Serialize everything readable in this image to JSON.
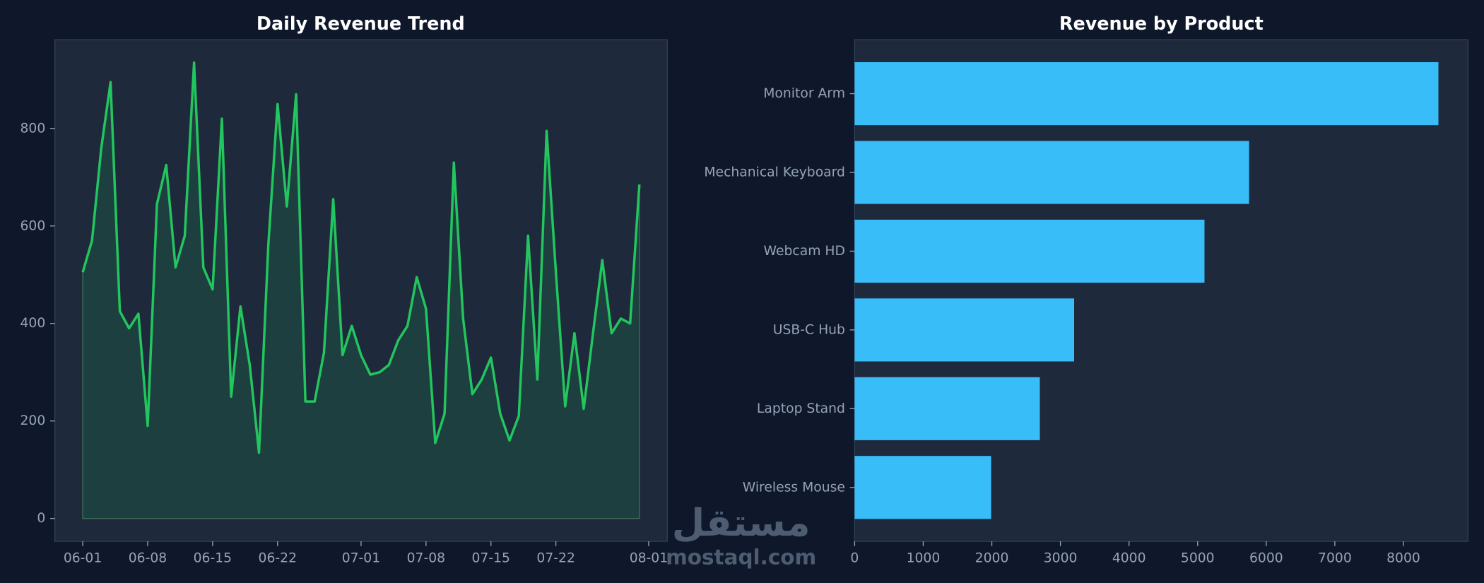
{
  "chart_data": [
    {
      "type": "line",
      "title": "Daily Revenue Trend",
      "x": [
        "06-01",
        "06-02",
        "06-03",
        "06-04",
        "06-05",
        "06-06",
        "06-07",
        "06-08",
        "06-09",
        "06-10",
        "06-11",
        "06-12",
        "06-13",
        "06-14",
        "06-15",
        "06-16",
        "06-17",
        "06-18",
        "06-19",
        "06-20",
        "06-21",
        "06-22",
        "06-23",
        "06-24",
        "06-25",
        "06-26",
        "06-27",
        "06-28",
        "06-29",
        "06-30",
        "07-01",
        "07-02",
        "07-03",
        "07-04",
        "07-05",
        "07-06",
        "07-07",
        "07-08",
        "07-09",
        "07-10",
        "07-11",
        "07-12",
        "07-13",
        "07-14",
        "07-15",
        "07-16",
        "07-17",
        "07-18",
        "07-19",
        "07-20",
        "07-21",
        "07-22",
        "07-23",
        "07-24",
        "07-25",
        "07-26",
        "07-27",
        "07-28",
        "07-29",
        "07-30",
        "07-31"
      ],
      "series": [
        {
          "color": "#22c55e",
          "values": [
            505,
            570,
            760,
            895,
            425,
            390,
            420,
            190,
            645,
            725,
            515,
            580,
            935,
            515,
            470,
            820,
            250,
            435,
            315,
            135,
            560,
            850,
            640,
            870,
            240,
            240,
            340,
            655,
            335,
            395,
            335,
            295,
            300,
            315,
            365,
            395,
            495,
            430,
            155,
            215,
            730,
            410,
            255,
            285,
            330,
            215,
            160,
            210,
            580,
            285,
            795,
            505,
            230,
            380,
            225,
            380,
            530,
            380,
            410,
            400,
            685
          ]
        }
      ],
      "xlim": [
        "05-29",
        "08-03"
      ],
      "xticks": [
        "06-01",
        "06-08",
        "06-15",
        "06-22",
        "07-01",
        "07-08",
        "07-15",
        "07-22",
        "08-01"
      ],
      "ylim": [
        -47,
        982
      ],
      "yticks": [
        0,
        200,
        400,
        600,
        800
      ]
    },
    {
      "type": "barh",
      "title": "Revenue by Product",
      "categories": [
        "Monitor Arm",
        "Mechanical Keyboard",
        "Webcam HD",
        "USB-C Hub",
        "Laptop Stand",
        "Wireless Mouse"
      ],
      "values": [
        8510,
        5750,
        5100,
        3200,
        2700,
        1990
      ],
      "color": "#38bdf8",
      "xlim": [
        0,
        8940
      ],
      "xticks": [
        0,
        1000,
        2000,
        3000,
        4000,
        5000,
        6000,
        7000,
        8000
      ]
    }
  ],
  "watermark": {
    "logo": "مستقل",
    "site": "mostaql.com"
  }
}
